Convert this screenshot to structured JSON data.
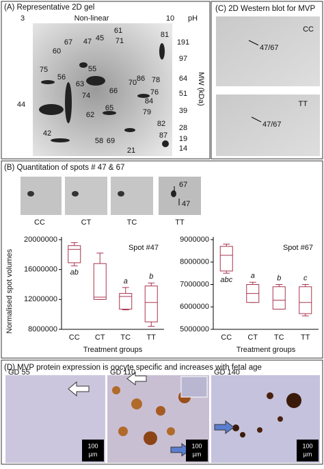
{
  "panel_a": {
    "title": "(A) Representative 2D gel",
    "ph_low": "3",
    "ph_mode": "Non-linear",
    "ph_high": "10",
    "ph_label": "pH",
    "mw_labels": [
      191,
      97,
      64,
      51,
      39,
      28,
      19,
      14
    ],
    "mw_axis": "MW (kDa)",
    "spots": [
      "61",
      "67",
      "45",
      "47",
      "60",
      "71",
      "81",
      "55",
      "75",
      "86",
      "56",
      "63",
      "78",
      "70",
      "66",
      "76",
      "74",
      "84",
      "44",
      "65",
      "79",
      "62",
      "82",
      "42",
      "58",
      "69",
      "87",
      "21"
    ]
  },
  "panel_b": {
    "title": "(B) Quantitation of spots # 47 & 67",
    "strip_labels": [
      "CC",
      "CT",
      "TC",
      "TT"
    ],
    "arrow_labels": [
      "67",
      "47"
    ]
  },
  "panel_c": {
    "title": "(C) 2D Western blot for MVP",
    "top_group": "CC",
    "top_spot": "47/67",
    "bottom_group": "TT",
    "bottom_spot": "47/67"
  },
  "panel_d": {
    "title": "(D) MVP protein expression is oocyte specific and increases with fetal age",
    "images": [
      {
        "label": "GD 55",
        "scale_value": "100",
        "scale_unit": "µm"
      },
      {
        "label": "GD 110",
        "scale_value": "100",
        "scale_unit": "µm"
      },
      {
        "label": "GD 140",
        "scale_value": "100",
        "scale_unit": "µm"
      }
    ]
  },
  "chart_data": [
    {
      "type": "box",
      "title": "Spot #47",
      "ylabel": "Normalised spot volumes",
      "xlabel": "Treatment groups",
      "color": "#a8324e",
      "categories": [
        "CC",
        "CT",
        "TC",
        "TT"
      ],
      "min": [
        16500000,
        12000000,
        10600000,
        8400000
      ],
      "q1": [
        16900000,
        12000000,
        10700000,
        9000000
      ],
      "median": [
        18700000,
        12300000,
        12400000,
        11600000
      ],
      "q3": [
        19200000,
        16800000,
        12800000,
        13800000
      ],
      "max": [
        19600000,
        18200000,
        13600000,
        14200000
      ],
      "group_labels": [
        "ab",
        null,
        "a",
        "b"
      ],
      "ylim": [
        8000000,
        20000000
      ],
      "yticks": [
        8000000,
        12000000,
        16000000,
        20000000
      ]
    },
    {
      "type": "box",
      "title": "Spot #67",
      "xlabel": "Treatment groups",
      "color": "#a8324e",
      "categories": [
        "CC",
        "CT",
        "TC",
        "TT"
      ],
      "min": [
        7500000,
        6200000,
        5900000,
        5600000
      ],
      "q1": [
        7600000,
        6200000,
        5900000,
        5700000
      ],
      "median": [
        8300000,
        6600000,
        6300000,
        6200000
      ],
      "q3": [
        8700000,
        7000000,
        6900000,
        6900000
      ],
      "max": [
        8800000,
        7100000,
        7000000,
        7000000
      ],
      "group_labels": [
        "abc",
        "a",
        "b",
        "c"
      ],
      "ylim": [
        5000000,
        9000000
      ],
      "yticks": [
        5000000,
        6000000,
        7000000,
        8000000,
        9000000
      ]
    }
  ]
}
